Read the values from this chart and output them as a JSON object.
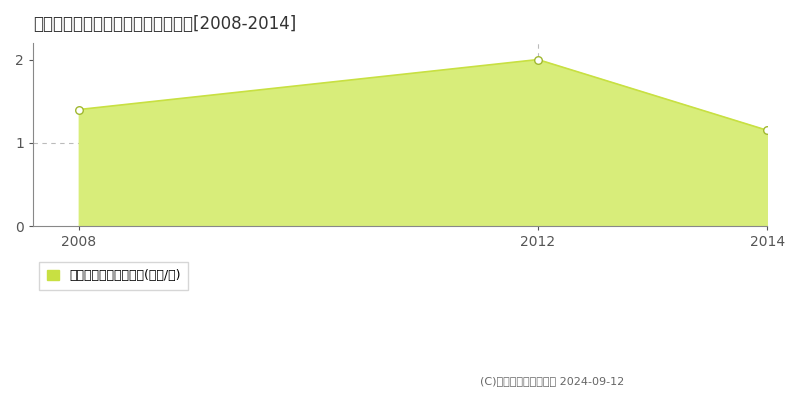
{
  "title": "北津軽郡板柳町長野　土地価格推移[2008-2014]",
  "years": [
    2008,
    2012,
    2014
  ],
  "values": [
    1.4,
    2.0,
    1.15
  ],
  "line_color": "#c8e042",
  "fill_color": "#d8ed7a",
  "marker_color": "#ffffff",
  "marker_edge_color": "#a0b830",
  "xlim_left": 2007.6,
  "xlim_right": 2014.0,
  "ylim": [
    0,
    2.2
  ],
  "yticks": [
    0,
    1,
    2
  ],
  "xticks": [
    2008,
    2012,
    2014
  ],
  "grid_color": "#bbbbbb",
  "legend_label": "土地価格　平均嵪単価(万円/嵪)",
  "legend_marker_color": "#c8e042",
  "copyright_text": "(C)土地価格ドットコム 2024-09-12",
  "background_color": "#ffffff",
  "vline_x": 2012,
  "vline_color": "#bbbbbb"
}
